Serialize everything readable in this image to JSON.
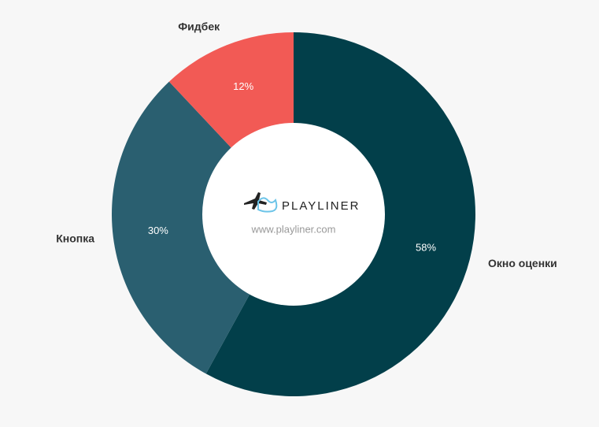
{
  "chart_data": {
    "type": "pie",
    "categories": [
      "Окно оценки",
      "Кнопка",
      "Фидбек"
    ],
    "values": [
      58,
      30,
      12
    ],
    "value_labels": [
      "58%",
      "30%",
      "12%"
    ],
    "colors": [
      "#023f4a",
      "#2a5f70",
      "#f25a55"
    ],
    "center_texts": [
      "PLAYLINER",
      "www.playliner.com"
    ]
  }
}
